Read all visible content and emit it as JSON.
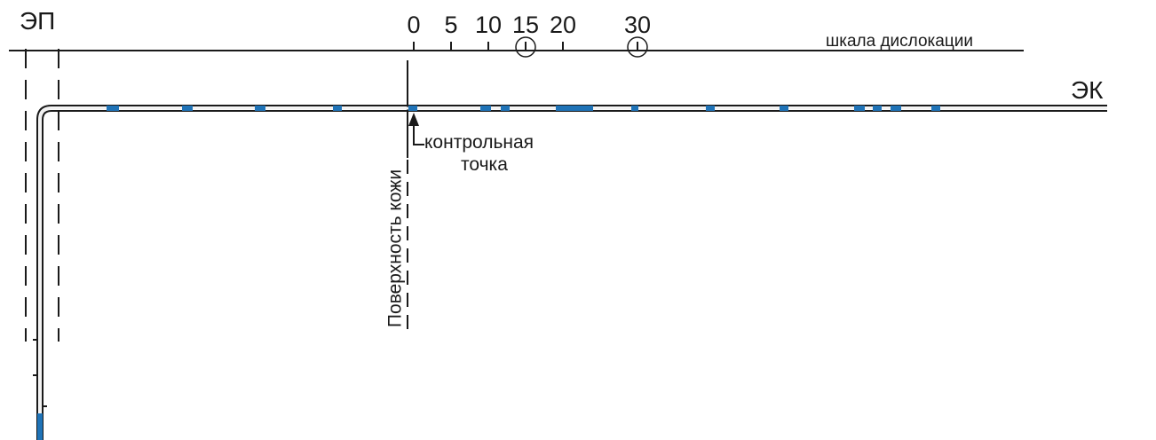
{
  "labels": {
    "ep": "ЭП",
    "ek": "ЭК",
    "scale_title": "шкала дислокации",
    "control_point_line1": "контрольная",
    "control_point_line2": "точка",
    "skin_surface": "Поверхность кожи"
  },
  "scale": {
    "ticks": [
      {
        "value": 0,
        "label": "0",
        "circled": false
      },
      {
        "value": 5,
        "label": "5",
        "circled": false
      },
      {
        "value": 10,
        "label": "10",
        "circled": false
      },
      {
        "value": 15,
        "label": "15",
        "circled": true
      },
      {
        "value": 20,
        "label": "20",
        "circled": false
      },
      {
        "value": 30,
        "label": "30",
        "circled": true
      }
    ]
  },
  "colors": {
    "line": "#1a1a1a",
    "marker": "#1f73b7",
    "catheter_fill": "#f2f2f2"
  }
}
